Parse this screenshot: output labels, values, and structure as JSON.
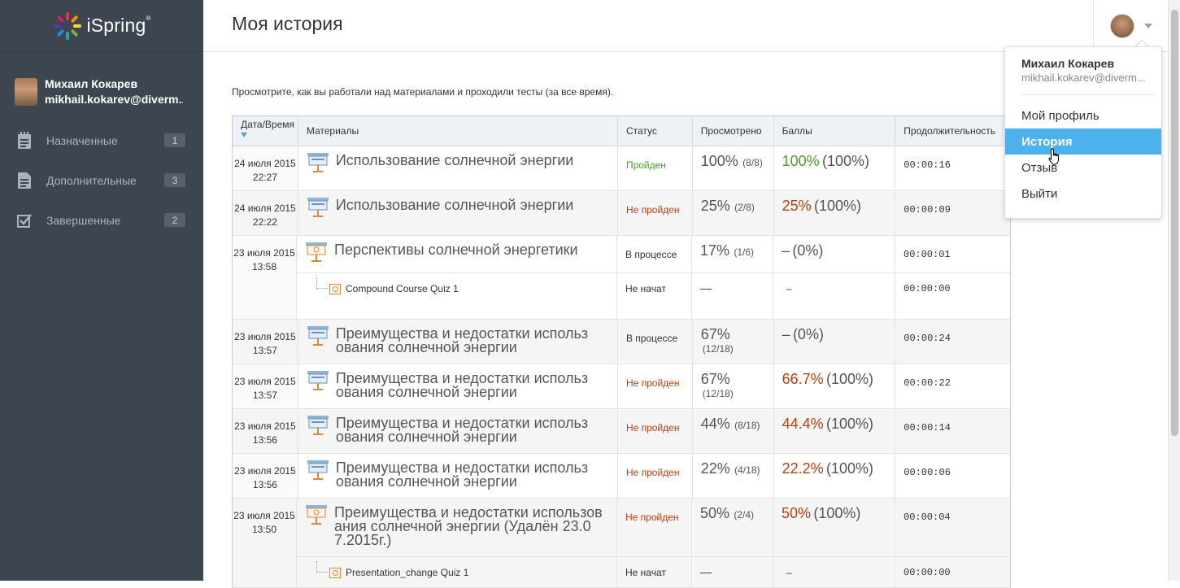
{
  "app": {
    "logo_text": "iSpring",
    "logo_mark": "®"
  },
  "sidebar": {
    "user_name": "Михаил Кокарев",
    "user_email": "mikhail.kokarev@diverm...",
    "items": [
      {
        "label": "Назначенные",
        "count": "1",
        "icon": "clipboard-icon"
      },
      {
        "label": "Дополнительные",
        "count": "3",
        "icon": "document-icon"
      },
      {
        "label": "Завершенные",
        "count": "2",
        "icon": "checkbox-icon"
      }
    ]
  },
  "header": {
    "title": "Моя история"
  },
  "intro_text": "Просмотрите, как вы работали над материалами и проходили тесты (за все время).",
  "table": {
    "columns": {
      "date": "Дата/Время",
      "materials": "Материалы",
      "status": "Статус",
      "viewed": "Просмотрено",
      "score": "Баллы",
      "duration": "Продолжительность"
    },
    "rows": [
      {
        "date": "24 июля 2015",
        "time": "22:27",
        "title": "Использование солнечной энергии",
        "status": "Пройден",
        "viewed_pct": "100%",
        "viewed_frac": "(8/8)",
        "score_pct": "100%",
        "score_total": "(100%)",
        "duration": "00:00:16"
      },
      {
        "date": "24 июля 2015",
        "time": "22:22",
        "title": "Использование солнечной энергии",
        "status": "Не пройден",
        "viewed_pct": "25%",
        "viewed_frac": "(2/8)",
        "score_pct": "25%",
        "score_total": "(100%)",
        "duration": "00:00:09"
      },
      {
        "date": "23 июля 2015",
        "time": "13:58",
        "title": "Перспективы солнечной энергетики",
        "status": "В процессе",
        "viewed_pct": "17%",
        "viewed_frac": "(1/6)",
        "score_pct": "–",
        "score_total": "(0%)",
        "duration": "00:00:01",
        "sub": {
          "title": "Compound Course Quiz 1",
          "status": "Не начат",
          "viewed": "—",
          "score": "–",
          "duration": "00:00:00"
        }
      },
      {
        "date": "23 июля 2015",
        "time": "13:57",
        "title_line1": "Преимущества и недостатки использ",
        "title_line2": "ования солнечной энергии",
        "status": "В процессе",
        "viewed_pct": "67%",
        "viewed_frac": "(12/18)",
        "score_pct": "–",
        "score_total": "(0%)",
        "duration": "00:00:24"
      },
      {
        "date": "23 июля 2015",
        "time": "13:57",
        "title_line1": "Преимущества и недостатки использ",
        "title_line2": "ования солнечной энергии",
        "status": "Не пройден",
        "viewed_pct": "67%",
        "viewed_frac": "(12/18)",
        "score_pct": "66.7%",
        "score_total": "(100%)",
        "duration": "00:00:22"
      },
      {
        "date": "23 июля 2015",
        "time": "13:56",
        "title_line1": "Преимущества и недостатки использ",
        "title_line2": "ования солнечной энергии",
        "status": "Не пройден",
        "viewed_pct": "44%",
        "viewed_frac": "(8/18)",
        "score_pct": "44.4%",
        "score_total": "(100%)",
        "duration": "00:00:14"
      },
      {
        "date": "23 июля 2015",
        "time": "13:56",
        "title_line1": "Преимущества и недостатки использ",
        "title_line2": "ования солнечной энергии",
        "status": "Не пройден",
        "viewed_pct": "22%",
        "viewed_frac": "(4/18)",
        "score_pct": "22.2%",
        "score_total": "(100%)",
        "duration": "00:00:06"
      },
      {
        "date": "23 июля 2015",
        "time": "13:50",
        "title_line1": "Преимущества и недостатки использов",
        "title_line2": "ания солнечной энергии (Удалён 23.0",
        "title_line3": "7.2015г.)",
        "status": "Не пройден",
        "viewed_pct": "50%",
        "viewed_frac": "(2/4)",
        "score_pct": "50%",
        "score_total": "(100%)",
        "duration": "00:00:04",
        "sub": {
          "title": "Presentation_change Quiz 1",
          "status": "Не начат",
          "viewed": "—",
          "score": "–",
          "duration": "00:00:00"
        }
      }
    ]
  },
  "dropdown": {
    "name": "Михаил Кокарев",
    "email": "mikhail.kokarev@diverm...",
    "items": [
      "Мой профиль",
      "История",
      "Отзыв",
      "Выйти"
    ],
    "active": "История"
  },
  "colors": {
    "sidebar_bg": "#3d4650",
    "pass": "#4aa02c",
    "fail": "#b8400e",
    "active_item": "#4db2ec"
  }
}
